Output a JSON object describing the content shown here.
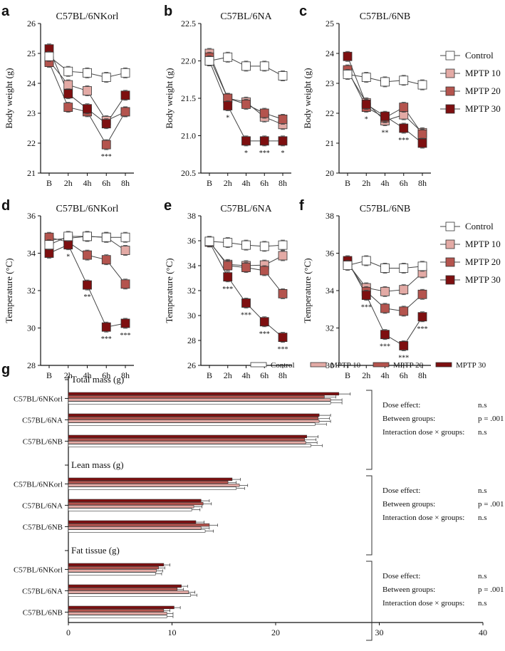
{
  "colors": {
    "control": "#ffffff",
    "mptp10": "#e3aaa5",
    "mptp20": "#b4544e",
    "mptp30": "#7e0f10",
    "axis": "#111111",
    "line": "#444444"
  },
  "legend": [
    "Control",
    "MPTP 10",
    "MPTP 20",
    "MPTP 30"
  ],
  "chart_data": [
    {
      "id": "a",
      "type": "line",
      "title": "C57BL/6NKorl",
      "ylabel": "Body weight (g)",
      "categories": [
        "B",
        "2h",
        "4h",
        "6h",
        "8h"
      ],
      "ylim": [
        21,
        26
      ],
      "yticks": [
        21,
        22,
        23,
        24,
        25,
        26
      ],
      "series": [
        {
          "name": "Control",
          "values": [
            24.9,
            24.4,
            24.35,
            24.2,
            24.35
          ]
        },
        {
          "name": "MPTP 10",
          "values": [
            24.75,
            23.95,
            23.75,
            22.75,
            23.05
          ]
        },
        {
          "name": "MPTP 20",
          "values": [
            24.7,
            23.2,
            23.05,
            21.95,
            23.05
          ]
        },
        {
          "name": "MPTP 30",
          "values": [
            25.15,
            23.65,
            23.15,
            22.65,
            23.6
          ]
        }
      ],
      "annotations": [
        {
          "x": "6h",
          "text": "***"
        }
      ]
    },
    {
      "id": "b",
      "type": "line",
      "title": "C57BL/6NA",
      "ylabel": "Body weight (g)",
      "categories": [
        "B",
        "2h",
        "4h",
        "6h",
        "8h"
      ],
      "ylim": [
        20.5,
        22.5
      ],
      "yticks": [
        20.5,
        21.0,
        21.5,
        22.0,
        22.5
      ],
      "series": [
        {
          "name": "Control",
          "values": [
            22.0,
            22.05,
            21.93,
            21.93,
            21.8
          ]
        },
        {
          "name": "MPTP 10",
          "values": [
            22.1,
            21.5,
            21.45,
            21.25,
            21.15
          ]
        },
        {
          "name": "MPTP 20",
          "values": [
            22.05,
            21.5,
            21.42,
            21.3,
            21.22
          ]
        },
        {
          "name": "MPTP 30",
          "values": [
            22.0,
            21.4,
            20.93,
            20.93,
            20.93
          ]
        }
      ],
      "annotations": [
        {
          "x": "2h",
          "text": "*"
        },
        {
          "x": "4h",
          "text": "*"
        },
        {
          "x": "6h",
          "text": "***"
        },
        {
          "x": "8h",
          "text": "*"
        }
      ]
    },
    {
      "id": "c",
      "type": "line",
      "title": "C57BL/6NB",
      "ylabel": "Body weight (g)",
      "categories": [
        "B",
        "2h",
        "4h",
        "6h",
        "8h"
      ],
      "ylim": [
        20,
        25
      ],
      "yticks": [
        20,
        21,
        22,
        23,
        24,
        25
      ],
      "series": [
        {
          "name": "Control",
          "values": [
            23.3,
            23.2,
            23.05,
            23.1,
            22.95
          ]
        },
        {
          "name": "MPTP 10",
          "values": [
            23.4,
            22.35,
            21.75,
            21.95,
            21.35
          ]
        },
        {
          "name": "MPTP 20",
          "values": [
            23.45,
            22.2,
            21.85,
            22.2,
            21.3
          ]
        },
        {
          "name": "MPTP 30",
          "values": [
            23.9,
            22.3,
            21.9,
            21.5,
            21.0
          ]
        }
      ],
      "annotations": [
        {
          "x": "2h",
          "text": "*"
        },
        {
          "x": "4h",
          "text": "**"
        },
        {
          "x": "6h",
          "text": "***"
        }
      ]
    },
    {
      "id": "d",
      "type": "line",
      "title": "C57BL/6NKorl",
      "ylabel": "Temperature (°C)",
      "categories": [
        "B",
        "2h",
        "4h",
        "6h",
        "8h"
      ],
      "ylim": [
        28,
        36
      ],
      "yticks": [
        28,
        30,
        32,
        34,
        36
      ],
      "series": [
        {
          "name": "Control",
          "values": [
            34.45,
            34.9,
            34.9,
            34.85,
            34.85
          ]
        },
        {
          "name": "MPTP 10",
          "values": [
            34.7,
            34.8,
            34.9,
            34.85,
            34.15
          ]
        },
        {
          "name": "MPTP 20",
          "values": [
            34.85,
            34.6,
            33.9,
            33.65,
            32.35
          ]
        },
        {
          "name": "MPTP 30",
          "values": [
            34.0,
            34.45,
            32.3,
            30.05,
            30.25
          ]
        }
      ],
      "annotations": [
        {
          "x": "2h",
          "text": "*"
        },
        {
          "x": "4h",
          "text": "**"
        },
        {
          "x": "6h",
          "text": "***"
        },
        {
          "x": "8h",
          "text": "***"
        }
      ]
    },
    {
      "id": "e",
      "type": "line",
      "title": "C57BL/6NA",
      "ylabel": "Temperature (°C)",
      "categories": [
        "B",
        "2h",
        "4h",
        "6h",
        "8h"
      ],
      "ylim": [
        26,
        38
      ],
      "yticks": [
        26,
        28,
        30,
        32,
        34,
        36,
        38
      ],
      "series": [
        {
          "name": "Control",
          "values": [
            35.95,
            35.85,
            35.65,
            35.55,
            35.65
          ]
        },
        {
          "name": "MPTP 10",
          "values": [
            35.9,
            34.1,
            34.0,
            34.05,
            34.8
          ]
        },
        {
          "name": "MPTP 20",
          "values": [
            35.95,
            34.0,
            33.85,
            33.6,
            31.75
          ]
        },
        {
          "name": "MPTP 30",
          "values": [
            35.9,
            33.1,
            31.0,
            29.5,
            28.25
          ]
        }
      ],
      "annotations": [
        {
          "x": "2h",
          "text": "***"
        },
        {
          "x": "4h",
          "text": "***"
        },
        {
          "x": "6h",
          "text": "***"
        },
        {
          "x": "8h",
          "text": "***"
        }
      ]
    },
    {
      "id": "f",
      "type": "line",
      "title": "C57BL/6NB",
      "ylabel": "Temperature (°C)",
      "categories": [
        "B",
        "2h",
        "4h",
        "6h",
        "8h"
      ],
      "ylim": [
        30,
        38
      ],
      "yticks": [
        30,
        32,
        34,
        36,
        38
      ],
      "series": [
        {
          "name": "Control",
          "values": [
            35.35,
            35.6,
            35.2,
            35.2,
            35.3
          ]
        },
        {
          "name": "MPTP 10",
          "values": [
            35.45,
            34.15,
            33.95,
            34.05,
            34.95
          ]
        },
        {
          "name": "MPTP 20",
          "values": [
            35.5,
            33.95,
            33.05,
            32.9,
            33.8
          ]
        },
        {
          "name": "MPTP 30",
          "values": [
            35.6,
            33.75,
            31.65,
            31.05,
            32.6
          ]
        }
      ],
      "annotations": [
        {
          "x": "2h",
          "text": "***"
        },
        {
          "x": "4h",
          "text": "***"
        },
        {
          "x": "6h",
          "text": "***"
        },
        {
          "x": "8h",
          "text": "***"
        }
      ]
    },
    {
      "id": "g",
      "type": "bar",
      "orientation": "horizontal",
      "xlim": [
        0,
        40
      ],
      "xticks": [
        0,
        10,
        20,
        30,
        40
      ],
      "series_names": [
        "Control",
        "MPTP 10",
        "MPTP 20",
        "MPTP 30"
      ],
      "groups": [
        {
          "title": "Total mass (g)",
          "strains": [
            {
              "name": "C57BL/6NKorl",
              "values": [
                25.3,
                25.3,
                24.7,
                26.1
              ]
            },
            {
              "name": "C57BL/6NA",
              "values": [
                23.8,
                24.2,
                24.1,
                24.2
              ]
            },
            {
              "name": "C57BL/6NB",
              "values": [
                23.4,
                22.9,
                22.8,
                23.0
              ]
            }
          ],
          "stats": [
            {
              "label": "Dose effect:",
              "value": "n.s"
            },
            {
              "label": "Between groups:",
              "value": "p = .001"
            },
            {
              "label": "Interaction dose × groups:",
              "value": "n.s"
            }
          ]
        },
        {
          "title": "Lean mass (g)",
          "strains": [
            {
              "name": "C57BL/6NKorl",
              "values": [
                16.2,
                16.5,
                15.4,
                15.8
              ]
            },
            {
              "name": "C57BL/6NA",
              "values": [
                11.9,
                12.1,
                13.0,
                12.8
              ]
            },
            {
              "name": "C57BL/6NB",
              "values": [
                13.2,
                12.8,
                13.6,
                12.3
              ]
            }
          ],
          "stats": [
            {
              "label": "Dose effect:",
              "value": "n.s"
            },
            {
              "label": "Between groups:",
              "value": "p = .001"
            },
            {
              "label": "Interaction dose × groups:",
              "value": "n.s"
            }
          ]
        },
        {
          "title": "Fat tissue (g)",
          "strains": [
            {
              "name": "C57BL/6NKorl",
              "values": [
                8.4,
                8.5,
                8.7,
                9.2
              ]
            },
            {
              "name": "C57BL/6NA",
              "values": [
                11.8,
                11.6,
                10.5,
                10.9
              ]
            },
            {
              "name": "C57BL/6NB",
              "values": [
                9.5,
                9.5,
                9.2,
                10.2
              ]
            }
          ],
          "stats": [
            {
              "label": "Dose effect:",
              "value": "n.s"
            },
            {
              "label": "Between groups:",
              "value": "p = .001"
            },
            {
              "label": "Interaction dose × groups:",
              "value": "n.s"
            }
          ]
        }
      ]
    }
  ]
}
